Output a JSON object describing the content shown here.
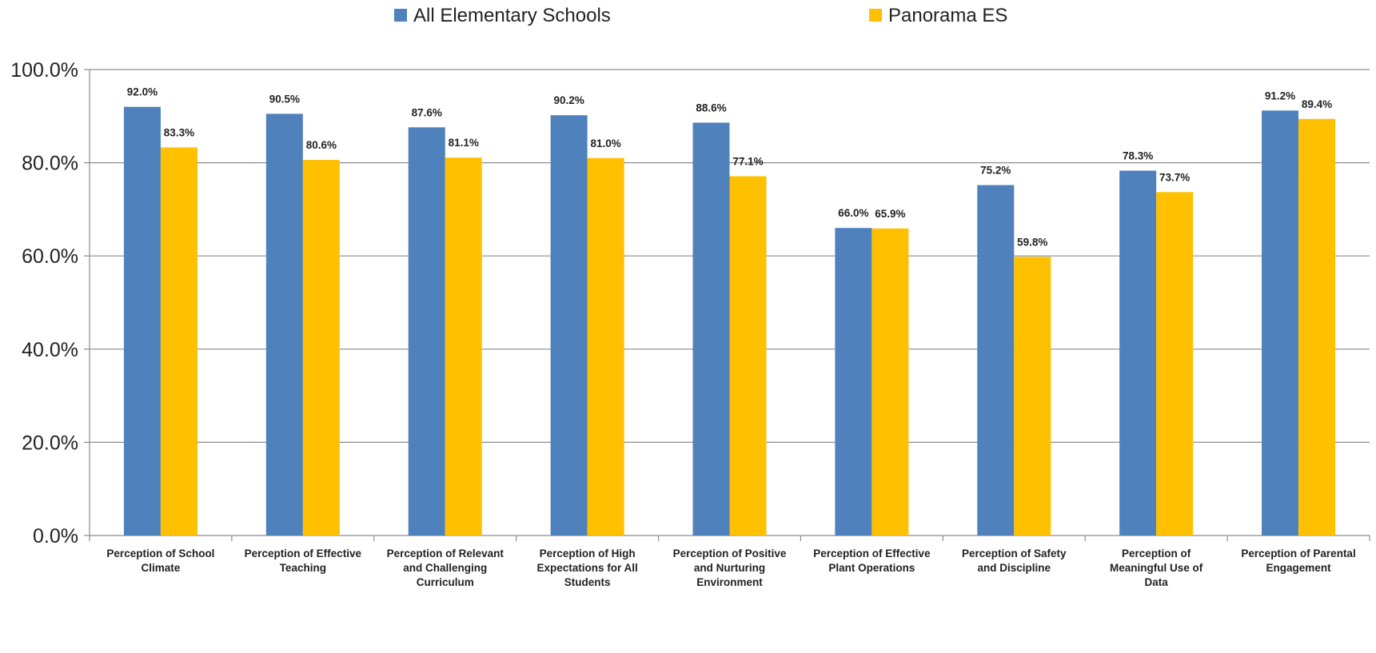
{
  "chart_data": {
    "type": "bar",
    "title": "",
    "xlabel": "",
    "ylabel": "",
    "categories": [
      "Perception of School Climate",
      "Perception of Effective Teaching",
      "Perception of Relevant and Challenging Curriculum",
      "Perception of High Expectations for All Students",
      "Perception of Positive and Nurturing Environment",
      "Perception of Effective Plant Operations",
      "Perception of Safety and Discipline",
      "Perception of Meaningful Use of Data",
      "Perception of Parental Engagement"
    ],
    "category_lines": [
      [
        "Perception of School",
        "Climate"
      ],
      [
        "Perception of Effective",
        "Teaching"
      ],
      [
        "Perception of Relevant",
        "and Challenging",
        "Curriculum"
      ],
      [
        "Perception of High",
        "Expectations for All",
        "Students"
      ],
      [
        "Perception of Positive",
        "and Nurturing",
        "Environment"
      ],
      [
        "Perception of Effective",
        "Plant Operations"
      ],
      [
        "Perception of Safety",
        "and Discipline"
      ],
      [
        "Perception of",
        "Meaningful Use of",
        "Data"
      ],
      [
        "Perception of Parental",
        "Engagement"
      ]
    ],
    "series": [
      {
        "name": "All Elementary Schools",
        "color": "#4F81BD",
        "values": [
          92.0,
          90.5,
          87.6,
          90.2,
          88.6,
          66.0,
          75.2,
          78.3,
          91.2
        ],
        "labels": [
          "92.0%",
          "90.5%",
          "87.6%",
          "90.2%",
          "88.6%",
          "66.0%",
          "75.2%",
          "78.3%",
          "91.2%"
        ]
      },
      {
        "name": "Panorama ES",
        "color": "#FFC000",
        "values": [
          83.3,
          80.6,
          81.1,
          81.0,
          77.1,
          65.9,
          59.8,
          73.7,
          89.4
        ],
        "labels": [
          "83.3%",
          "80.6%",
          "81.1%",
          "81.0%",
          "77.1%",
          "65.9%",
          "59.8%",
          "73.7%",
          "89.4%"
        ]
      }
    ],
    "ylim": [
      0,
      100
    ],
    "yticks": [
      0,
      20,
      40,
      60,
      80,
      100
    ],
    "ytick_labels": [
      "0.0%",
      "20.0%",
      "40.0%",
      "60.0%",
      "80.0%",
      "100.0%"
    ],
    "grid": true,
    "legend_position": "top"
  }
}
